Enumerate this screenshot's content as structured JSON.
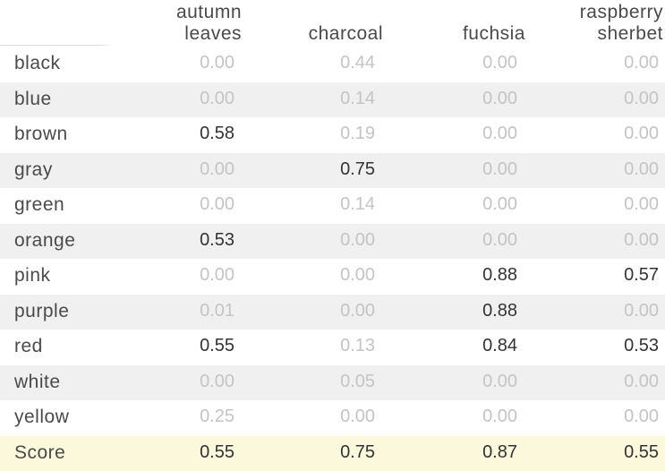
{
  "chart_data": {
    "type": "table",
    "columns": [
      "autumn leaves",
      "charcoal",
      "fuchsia",
      "raspberry sherbet"
    ],
    "column_header_lines": [
      [
        "autumn",
        "leaves"
      ],
      [
        "charcoal"
      ],
      [
        "fuchsia"
      ],
      [
        "raspberry",
        "sherbet"
      ]
    ],
    "rows": [
      {
        "label": "black",
        "values": [
          "0.00",
          "0.44",
          "0.00",
          "0.00"
        ],
        "highlight": [
          false,
          false,
          false,
          false
        ]
      },
      {
        "label": "blue",
        "values": [
          "0.00",
          "0.14",
          "0.00",
          "0.00"
        ],
        "highlight": [
          false,
          false,
          false,
          false
        ]
      },
      {
        "label": "brown",
        "values": [
          "0.58",
          "0.19",
          "0.00",
          "0.00"
        ],
        "highlight": [
          true,
          false,
          false,
          false
        ]
      },
      {
        "label": "gray",
        "values": [
          "0.00",
          "0.75",
          "0.00",
          "0.00"
        ],
        "highlight": [
          false,
          true,
          false,
          false
        ]
      },
      {
        "label": "green",
        "values": [
          "0.00",
          "0.14",
          "0.00",
          "0.00"
        ],
        "highlight": [
          false,
          false,
          false,
          false
        ]
      },
      {
        "label": "orange",
        "values": [
          "0.53",
          "0.00",
          "0.00",
          "0.00"
        ],
        "highlight": [
          true,
          false,
          false,
          false
        ]
      },
      {
        "label": "pink",
        "values": [
          "0.00",
          "0.00",
          "0.88",
          "0.57"
        ],
        "highlight": [
          false,
          false,
          true,
          true
        ]
      },
      {
        "label": "purple",
        "values": [
          "0.01",
          "0.00",
          "0.88",
          "0.00"
        ],
        "highlight": [
          false,
          false,
          true,
          false
        ]
      },
      {
        "label": "red",
        "values": [
          "0.55",
          "0.13",
          "0.84",
          "0.53"
        ],
        "highlight": [
          true,
          false,
          true,
          true
        ]
      },
      {
        "label": "white",
        "values": [
          "0.00",
          "0.05",
          "0.00",
          "0.00"
        ],
        "highlight": [
          false,
          false,
          false,
          false
        ]
      },
      {
        "label": "yellow",
        "values": [
          "0.25",
          "0.00",
          "0.00",
          "0.00"
        ],
        "highlight": [
          false,
          false,
          false,
          false
        ]
      }
    ],
    "score_row": {
      "label": "Score",
      "values": [
        "0.55",
        "0.75",
        "0.87",
        "0.55"
      ]
    },
    "colors": {
      "stripe": "#f0f0f0",
      "score_bg": "#fbf8dc",
      "dim_text": "#c4c4c4",
      "strong_text": "#333333"
    }
  }
}
